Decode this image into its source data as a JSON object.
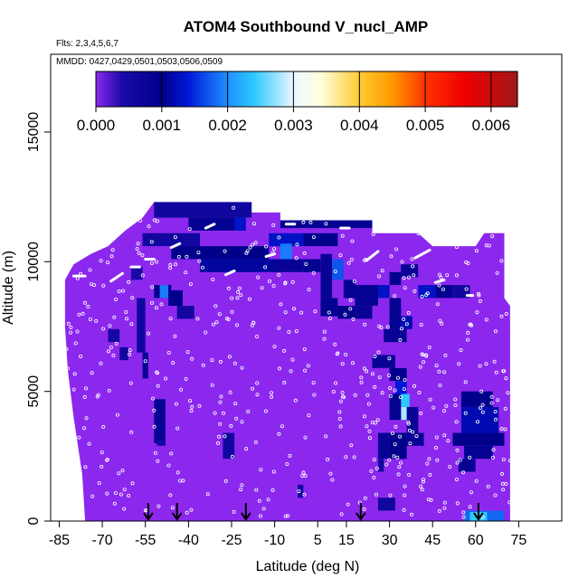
{
  "chart_data": {
    "type": "heatmap",
    "title": "ATOM4 Southbound V_nucl_AMP",
    "flights_label": "Flts: 2,3,4,5,6,7",
    "dates_label": "MMDD: 0427,0429,0501,0503,0506,0509",
    "xlabel": "Latitude (deg N)",
    "ylabel": "Altitude (m)",
    "xlim": [
      -88,
      90
    ],
    "ylim": [
      0,
      18000
    ],
    "x_ticks": [
      -85,
      -70,
      -55,
      -40,
      -25,
      -10,
      5,
      15,
      30,
      45,
      60,
      75
    ],
    "y_ticks": [
      0,
      5000,
      10000,
      15000
    ],
    "colorbar": {
      "min": 0.0,
      "max": 0.0064,
      "ticks": [
        0.0,
        0.001,
        0.002,
        0.003,
        0.004,
        0.005,
        0.006
      ],
      "tick_labels": [
        "0.000",
        "0.001",
        "0.002",
        "0.003",
        "0.004",
        "0.005",
        "0.006"
      ],
      "stops": [
        {
          "v": 0.0,
          "color": "#8c28ee"
        },
        {
          "v": 0.0004,
          "color": "#1a0aa8"
        },
        {
          "v": 0.001,
          "color": "#00008b"
        },
        {
          "v": 0.0014,
          "color": "#0018d8"
        },
        {
          "v": 0.002,
          "color": "#1e90ff"
        },
        {
          "v": 0.0024,
          "color": "#2ec8ff"
        },
        {
          "v": 0.003,
          "color": "#eaf8ff"
        },
        {
          "v": 0.0034,
          "color": "#ffffe0"
        },
        {
          "v": 0.004,
          "color": "#ffcc33"
        },
        {
          "v": 0.0045,
          "color": "#ff9900"
        },
        {
          "v": 0.005,
          "color": "#ff3300"
        },
        {
          "v": 0.0056,
          "color": "#ee0000"
        },
        {
          "v": 0.0064,
          "color": "#a01818"
        }
      ]
    },
    "background_value": 0.0,
    "data_envelope": [
      [
        -76,
        0
      ],
      [
        -77,
        1800
      ],
      [
        -80,
        4000
      ],
      [
        -82,
        5800
      ],
      [
        -83,
        7500
      ],
      [
        -83,
        9300
      ],
      [
        -80,
        9900
      ],
      [
        -74,
        10300
      ],
      [
        -68,
        10600
      ],
      [
        -62,
        11200
      ],
      [
        -56,
        11700
      ],
      [
        -52,
        12300
      ],
      [
        -20,
        12300
      ],
      [
        -18,
        11900
      ],
      [
        -8,
        11900
      ],
      [
        -8,
        11600
      ],
      [
        12,
        11600
      ],
      [
        24,
        11600
      ],
      [
        24,
        11100
      ],
      [
        40,
        11100
      ],
      [
        45,
        10600
      ],
      [
        60,
        10600
      ],
      [
        63,
        11100
      ],
      [
        70,
        11100
      ],
      [
        70,
        8600
      ],
      [
        72,
        8300
      ],
      [
        72,
        0
      ]
    ],
    "cells": [
      {
        "lat": [
          -52,
          -18
        ],
        "alt": [
          11700,
          12300
        ],
        "value": 0.0006
      },
      {
        "lat": [
          -40,
          -24
        ],
        "alt": [
          11200,
          11700
        ],
        "value": 0.0009
      },
      {
        "lat": [
          -24,
          -20
        ],
        "alt": [
          11200,
          11700
        ],
        "value": 0.0013
      },
      {
        "lat": [
          -8,
          24
        ],
        "alt": [
          11300,
          11600
        ],
        "value": 0.0009
      },
      {
        "lat": [
          -56,
          -36
        ],
        "alt": [
          10600,
          11100
        ],
        "value": 0.0006
      },
      {
        "lat": [
          -46,
          -12
        ],
        "alt": [
          10100,
          10600
        ],
        "value": 0.001
      },
      {
        "lat": [
          -12,
          0
        ],
        "alt": [
          10600,
          11100
        ],
        "value": 0.0013
      },
      {
        "lat": [
          0,
          12
        ],
        "alt": [
          10600,
          11100
        ],
        "value": 0.001
      },
      {
        "lat": [
          -36,
          -8
        ],
        "alt": [
          9600,
          10100
        ],
        "value": 0.0011
      },
      {
        "lat": [
          -8,
          -4
        ],
        "alt": [
          10000,
          10700
        ],
        "value": 0.0019
      },
      {
        "lat": [
          -10,
          0
        ],
        "alt": [
          9600,
          10100
        ],
        "value": 0.0008
      },
      {
        "lat": [
          -60,
          -56
        ],
        "alt": [
          9300,
          9800
        ],
        "value": 0.0004
      },
      {
        "lat": [
          -52,
          -46
        ],
        "alt": [
          8600,
          9100
        ],
        "value": 0.0009
      },
      {
        "lat": [
          -50,
          -47
        ],
        "alt": [
          8600,
          9100
        ],
        "value": 0.0019
      },
      {
        "lat": [
          -47,
          -42
        ],
        "alt": [
          8300,
          8900
        ],
        "value": 0.001
      },
      {
        "lat": [
          -44,
          -38
        ],
        "alt": [
          7800,
          8300
        ],
        "value": 0.0006
      },
      {
        "lat": [
          -58,
          -55
        ],
        "alt": [
          6500,
          8600
        ],
        "value": 0.0006
      },
      {
        "lat": [
          -56,
          -54
        ],
        "alt": [
          5500,
          6500
        ],
        "value": 0.0008
      },
      {
        "lat": [
          -68,
          -64
        ],
        "alt": [
          6900,
          7400
        ],
        "value": 0.0005
      },
      {
        "lat": [
          -64,
          -61
        ],
        "alt": [
          6200,
          6700
        ],
        "value": 0.0006
      },
      {
        "lat": [
          -52,
          -48
        ],
        "alt": [
          3000,
          4700
        ],
        "value": 0.0008
      },
      {
        "lat": [
          -51,
          -48
        ],
        "alt": [
          2900,
          3100
        ],
        "value": 0.0005
      },
      {
        "lat": [
          -28,
          -24
        ],
        "alt": [
          2400,
          3400
        ],
        "value": 0.0006
      },
      {
        "lat": [
          0,
          6
        ],
        "alt": [
          9600,
          10100
        ],
        "value": 0.0009
      },
      {
        "lat": [
          6,
          10
        ],
        "alt": [
          8600,
          10300
        ],
        "value": 0.0008
      },
      {
        "lat": [
          10,
          14
        ],
        "alt": [
          9300,
          10100
        ],
        "value": 0.0017
      },
      {
        "lat": [
          14,
          18
        ],
        "alt": [
          8600,
          9300
        ],
        "value": 0.0009
      },
      {
        "lat": [
          18,
          26
        ],
        "alt": [
          8300,
          9100
        ],
        "value": 0.0009
      },
      {
        "lat": [
          26,
          30
        ],
        "alt": [
          8600,
          9100
        ],
        "value": 0.0013
      },
      {
        "lat": [
          30,
          34
        ],
        "alt": [
          9100,
          9600
        ],
        "value": 0.0009
      },
      {
        "lat": [
          34,
          40
        ],
        "alt": [
          9400,
          9900
        ],
        "value": 0.0008
      },
      {
        "lat": [
          40,
          46
        ],
        "alt": [
          8600,
          9100
        ],
        "value": 0.0013
      },
      {
        "lat": [
          46,
          52
        ],
        "alt": [
          8600,
          9100
        ],
        "value": 0.0009
      },
      {
        "lat": [
          52,
          58
        ],
        "alt": [
          8600,
          9100
        ],
        "value": 0.0006
      },
      {
        "lat": [
          6,
          12
        ],
        "alt": [
          7900,
          8600
        ],
        "value": 0.0009
      },
      {
        "lat": [
          12,
          18
        ],
        "alt": [
          7800,
          8300
        ],
        "value": 0.001
      },
      {
        "lat": [
          18,
          24
        ],
        "alt": [
          7800,
          8300
        ],
        "value": 0.0008
      },
      {
        "lat": [
          30,
          34
        ],
        "alt": [
          7400,
          8600
        ],
        "value": 0.0009
      },
      {
        "lat": [
          34,
          38
        ],
        "alt": [
          7400,
          7900
        ],
        "value": 0.0012
      },
      {
        "lat": [
          28,
          36
        ],
        "alt": [
          6900,
          7400
        ],
        "value": 0.0008
      },
      {
        "lat": [
          24,
          32
        ],
        "alt": [
          5900,
          6400
        ],
        "value": 0.0008
      },
      {
        "lat": [
          30,
          36
        ],
        "alt": [
          5400,
          5900
        ],
        "value": 0.001
      },
      {
        "lat": [
          32,
          36
        ],
        "alt": [
          4900,
          5400
        ],
        "value": 0.0014
      },
      {
        "lat": [
          33,
          37
        ],
        "alt": [
          4400,
          4900
        ],
        "value": 0.0024
      },
      {
        "lat": [
          34,
          37
        ],
        "alt": [
          3900,
          4400
        ],
        "value": 0.0028
      },
      {
        "lat": [
          30,
          34
        ],
        "alt": [
          3900,
          4900
        ],
        "value": 0.0009
      },
      {
        "lat": [
          36,
          40
        ],
        "alt": [
          3400,
          4400
        ],
        "value": 0.0008
      },
      {
        "lat": [
          26,
          30
        ],
        "alt": [
          2400,
          3400
        ],
        "value": 0.0008
      },
      {
        "lat": [
          30,
          36
        ],
        "alt": [
          2400,
          3400
        ],
        "value": 0.001
      },
      {
        "lat": [
          36,
          42
        ],
        "alt": [
          2900,
          3400
        ],
        "value": 0.0008
      },
      {
        "lat": [
          26,
          28
        ],
        "alt": [
          1900,
          2400
        ],
        "value": 0.0006
      },
      {
        "lat": [
          26,
          32
        ],
        "alt": [
          400,
          900
        ],
        "value": 0.0006
      },
      {
        "lat": [
          55,
          66
        ],
        "alt": [
          4400,
          5000
        ],
        "value": 0.001
      },
      {
        "lat": [
          55,
          68
        ],
        "alt": [
          3400,
          4400
        ],
        "value": 0.0012
      },
      {
        "lat": [
          52,
          70
        ],
        "alt": [
          2900,
          3400
        ],
        "value": 0.001
      },
      {
        "lat": [
          56,
          66
        ],
        "alt": [
          2400,
          2900
        ],
        "value": 0.0009
      },
      {
        "lat": [
          54,
          60
        ],
        "alt": [
          1900,
          2400
        ],
        "value": 0.0008
      },
      {
        "lat": [
          56,
          70
        ],
        "alt": [
          0,
          400
        ],
        "value": 0.0018
      },
      {
        "lat": [
          58,
          64
        ],
        "alt": [
          0,
          350
        ],
        "value": 0.0024
      },
      {
        "lat": [
          -2,
          0
        ],
        "alt": [
          900,
          1400
        ],
        "value": 0.0006
      }
    ],
    "arrow_latitudes": [
      -54,
      -44,
      -20,
      20,
      61
    ]
  }
}
